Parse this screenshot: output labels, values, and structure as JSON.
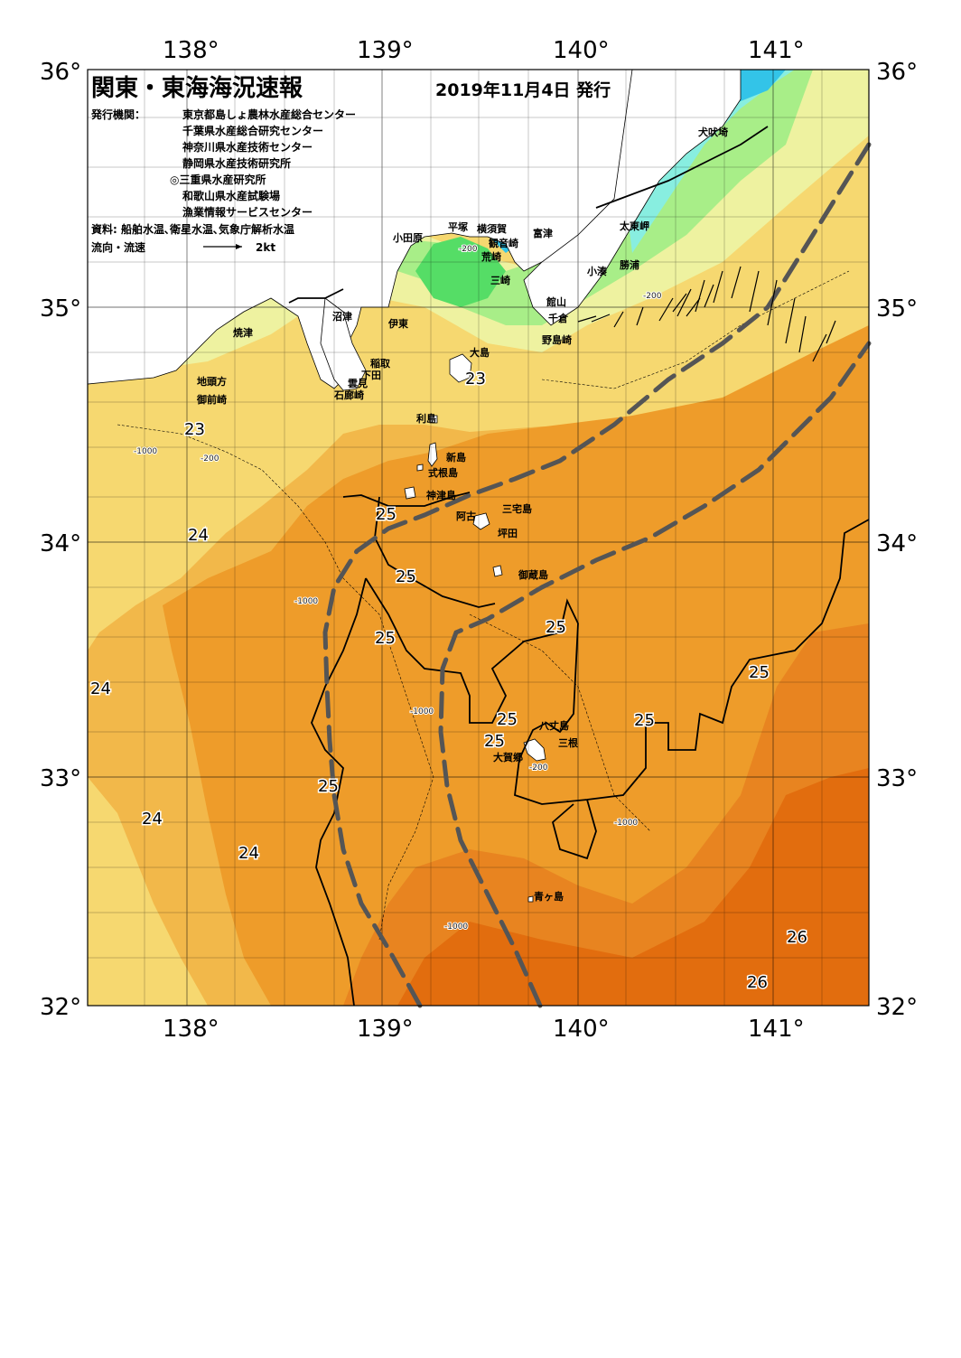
{
  "header": {
    "title": "関東・東海海況速報",
    "date": "2019年11月4日 発行",
    "agency_label": "発行機関：",
    "agencies": [
      "東京都島しょ農林水産総合センター",
      "千葉県水産総合研究センター",
      "神奈川県水産技術センター",
      "静岡県水産技術研究所",
      "◎三重県水産研究所",
      "和歌山県水産試験場",
      "漁業情報サービスセンター"
    ],
    "source": "資料: 船舶水温､衛星水温､気象庁解析水温",
    "flow_label": "流向・流速",
    "flow_scale": "2kt"
  },
  "axes": {
    "lon_ticks": [
      "138°",
      "139°",
      "140°",
      "141°"
    ],
    "lat_ticks": [
      "36°",
      "35°",
      "34°",
      "33°",
      "32°"
    ]
  },
  "places": [
    "犬吠埼",
    "太東岬",
    "勝浦",
    "小湊",
    "富津",
    "平塚",
    "横須賀",
    "観音崎",
    "小田原",
    "荒崎",
    "三崎",
    "館山",
    "千倉",
    "野島崎",
    "沼津",
    "伊東",
    "焼津",
    "稲取",
    "下田",
    "雲見",
    "石廊崎",
    "地頭方",
    "御前崎",
    "大島",
    "利島",
    "新島",
    "式根島",
    "神津島",
    "三宅島",
    "阿古",
    "坪田",
    "御蔵島",
    "八丈島",
    "三根",
    "大賀郷",
    "青ヶ島"
  ],
  "isotherm_labels": [
    "23",
    "23",
    "24",
    "25",
    "25",
    "25",
    "25",
    "25",
    "25",
    "25",
    "25",
    "25",
    "24",
    "24",
    "24",
    "26",
    "26"
  ],
  "depth_labels": [
    "-200",
    "-1000"
  ],
  "colors": {
    "land": "#ffffff",
    "water_coldest": "#33c4e8",
    "water_cold": "#88eee0",
    "water_green": "#55dd66",
    "water_lightgreen": "#a8ee88",
    "water_pale": "#eef2a0",
    "water_yellow": "#f6d870",
    "water_lightorange": "#f2b84a",
    "water_orange": "#ee9c2a",
    "water_darkorange": "#e88420",
    "water_deep": "#e26d0e",
    "kuroshio_axis": "#555555"
  }
}
